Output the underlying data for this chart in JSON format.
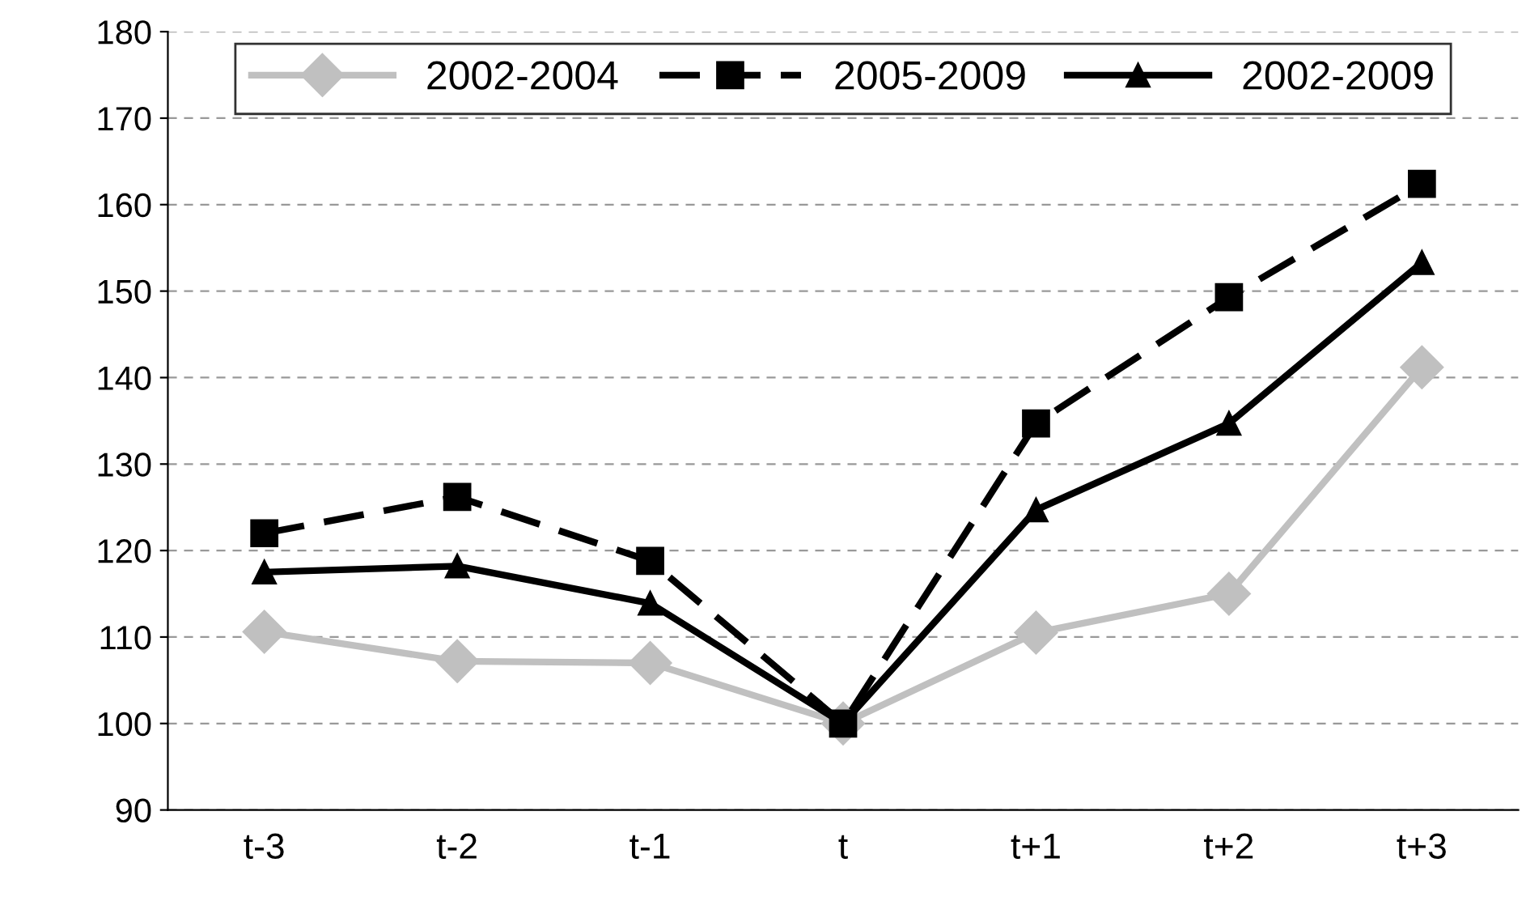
{
  "chart_data": {
    "type": "line",
    "categories": [
      "t-3",
      "t-2",
      "t-1",
      "t",
      "t+1",
      "t+2",
      "t+3"
    ],
    "series": [
      {
        "name": "2002-2004",
        "color": "#c0c0c0",
        "marker": "diamond",
        "line_style": "solid",
        "values": [
          110.6,
          107.2,
          107.0,
          100,
          110.5,
          115.0,
          141.2
        ]
      },
      {
        "name": "2005-2009",
        "color": "#000000",
        "marker": "square",
        "line_style": "dashed",
        "values": [
          122.0,
          126.2,
          118.8,
          100,
          134.7,
          149.3,
          162.4
        ]
      },
      {
        "name": "2002-2009",
        "color": "#000000",
        "marker": "triangle",
        "line_style": "solid",
        "values": [
          117.5,
          118.2,
          113.9,
          100,
          124.7,
          134.7,
          153.3
        ]
      }
    ],
    "ylim": [
      90,
      180
    ],
    "yticks": [
      90,
      100,
      110,
      120,
      130,
      140,
      150,
      160,
      170,
      180
    ],
    "grid": "y",
    "legend": "top"
  }
}
